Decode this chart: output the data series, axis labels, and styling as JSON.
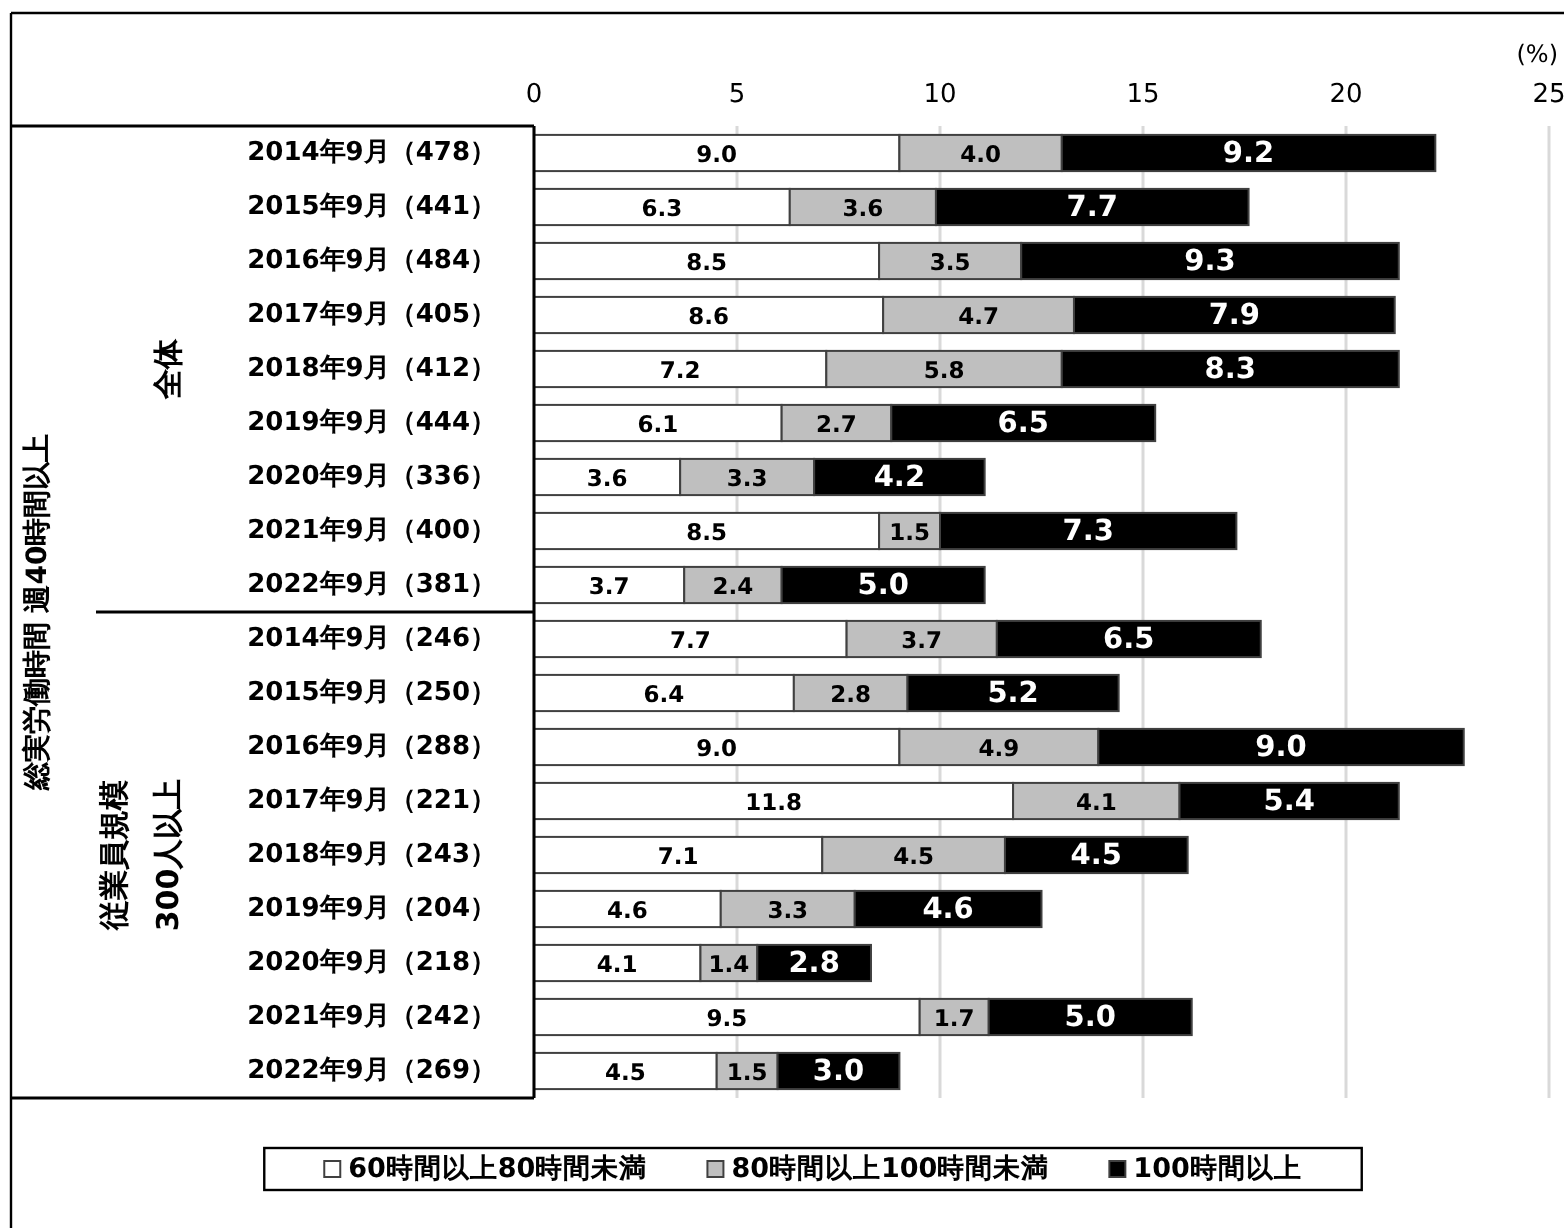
{
  "chart_data": {
    "type": "bar",
    "orientation": "horizontal",
    "stacked": true,
    "categories": [
      "2014年9月（478）",
      "2015年9月（441）",
      "2016年9月（484）",
      "2017年9月（405）",
      "2018年9月（412）",
      "2019年9月（444）",
      "2020年9月（336）",
      "2021年9月（400）",
      "2022年9月（381）",
      "2014年9月（246）",
      "2015年9月（250）",
      "2016年9月（288）",
      "2017年9月（221）",
      "2018年9月（243）",
      "2019年9月（204）",
      "2020年9月（218）",
      "2021年9月（242）",
      "2022年9月（269）"
    ],
    "series": [
      {
        "name": "60時間以上80時間未満",
        "color": "#ffffff",
        "values": [
          9.0,
          6.3,
          8.5,
          8.6,
          7.2,
          6.1,
          3.6,
          8.5,
          3.7,
          7.7,
          6.4,
          9.0,
          11.8,
          7.1,
          4.6,
          4.1,
          9.5,
          4.5
        ],
        "value_labels": [
          "9.0",
          "6.3",
          "8.5",
          "8.6",
          "7.2",
          "6.1",
          "3.6",
          "8.5",
          "3.7",
          "7.7",
          "6.4",
          "9.0",
          "11.8",
          "7.1",
          "4.6",
          "4.1",
          "9.5",
          "4.5"
        ]
      },
      {
        "name": "80時間以上100時間未満",
        "color": "#bfbfbf",
        "values": [
          4.0,
          3.6,
          3.5,
          4.7,
          5.8,
          2.7,
          3.3,
          1.5,
          2.4,
          3.7,
          2.8,
          4.9,
          4.1,
          4.5,
          3.3,
          1.4,
          1.7,
          1.5
        ],
        "value_labels": [
          "4.0",
          "3.6",
          "3.5",
          "4.7",
          "5.8",
          "2.7",
          "3.3",
          "1.5",
          "2.4",
          "3.7",
          "2.8",
          "4.9",
          "4.1",
          "4.5",
          "3.3",
          "1.4",
          "1.7",
          "1.5"
        ]
      },
      {
        "name": "100時間以上",
        "color": "#000000",
        "values": [
          9.2,
          7.7,
          9.3,
          7.9,
          8.3,
          6.5,
          4.2,
          7.3,
          5.0,
          6.5,
          5.2,
          9.0,
          5.4,
          4.5,
          4.6,
          2.8,
          5.0,
          3.0
        ],
        "value_labels": [
          "9.2",
          "7.7",
          "9.3",
          "7.9",
          "8.3",
          "6.5",
          "4.2",
          "7.3",
          "5.0",
          "6.5",
          "5.2",
          "9.0",
          "5.4",
          "4.5",
          "4.6",
          "2.8",
          "5.0",
          "3.0"
        ]
      }
    ],
    "xlabel": "(%)",
    "annotations": [
      "総実労働時間 週40時間以上",
      "全体",
      "従業員規模\n300人以上"
    ],
    "xlim": [
      0,
      25
    ],
    "xticks": [
      0,
      5,
      10,
      15,
      20,
      25
    ],
    "grid": "x",
    "legend": "bottom"
  }
}
